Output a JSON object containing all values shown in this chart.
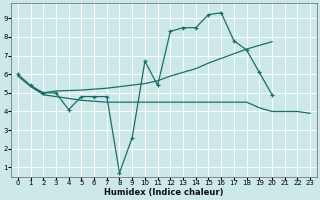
{
  "xlabel": "Humidex (Indice chaleur)",
  "bg_color": "#cce8e8",
  "line_color": "#1a6e68",
  "xlim": [
    -0.5,
    23.5
  ],
  "ylim": [
    0.5,
    9.8
  ],
  "xticks": [
    0,
    1,
    2,
    3,
    4,
    5,
    6,
    7,
    8,
    9,
    10,
    11,
    12,
    13,
    14,
    15,
    16,
    17,
    18,
    19,
    20,
    21,
    22,
    23
  ],
  "yticks": [
    1,
    2,
    3,
    4,
    5,
    6,
    7,
    8,
    9
  ],
  "line1_x": [
    0,
    1,
    2,
    3,
    4,
    5,
    6,
    7,
    8,
    9,
    10,
    11,
    12,
    13,
    14,
    15,
    16,
    17,
    18,
    19,
    20
  ],
  "line1_y": [
    6.0,
    5.4,
    5.0,
    5.0,
    4.1,
    4.8,
    4.8,
    4.8,
    0.7,
    2.6,
    6.7,
    5.4,
    8.3,
    8.5,
    8.5,
    9.2,
    9.3,
    7.8,
    7.3,
    6.1,
    4.9
  ],
  "line2_x": [
    0,
    1,
    2,
    3,
    5,
    6,
    7,
    10,
    11,
    12,
    13,
    14,
    15,
    16,
    17,
    18,
    19,
    20
  ],
  "line2_y": [
    5.9,
    5.35,
    5.0,
    5.1,
    5.15,
    5.2,
    5.25,
    5.5,
    5.65,
    5.9,
    6.1,
    6.3,
    6.6,
    6.85,
    7.1,
    7.35,
    7.55,
    7.75
  ],
  "line3_x": [
    1,
    2,
    3,
    4,
    5,
    6,
    7,
    10,
    11,
    12,
    13,
    14,
    15,
    16,
    17,
    18,
    19,
    20,
    22,
    23
  ],
  "line3_y": [
    5.35,
    4.9,
    4.8,
    4.7,
    4.6,
    4.55,
    4.5,
    4.5,
    4.5,
    4.5,
    4.5,
    4.5,
    4.5,
    4.5,
    4.5,
    4.5,
    4.2,
    4.0,
    4.0,
    3.9
  ]
}
